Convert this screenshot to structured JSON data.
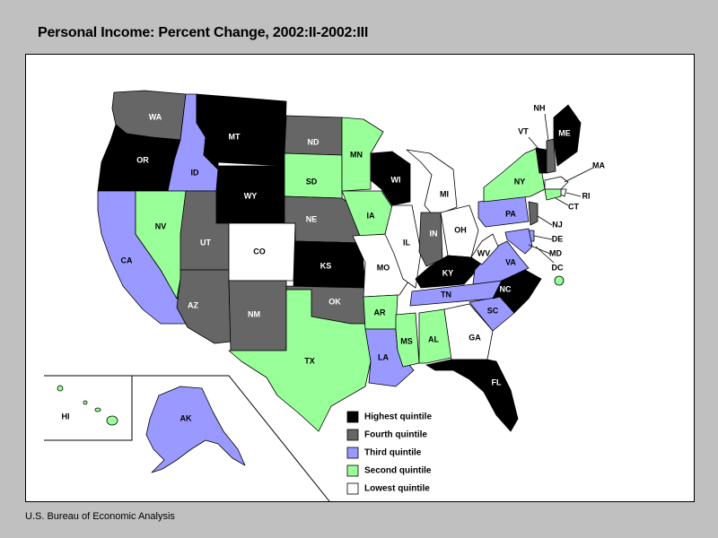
{
  "title": "Personal Income: Percent Change, 2002:II-2002:III",
  "source": "U.S. Bureau of Economic Analysis",
  "colors": {
    "highest": "#000000",
    "fourth": "#666666",
    "third": "#9999ff",
    "second": "#99ff99",
    "lowest": "#ffffff"
  },
  "legend": [
    {
      "key": "highest",
      "label": "Highest quintile"
    },
    {
      "key": "fourth",
      "label": "Fourth quintile"
    },
    {
      "key": "third",
      "label": "Third quintile"
    },
    {
      "key": "second",
      "label": "Second quintile"
    },
    {
      "key": "lowest",
      "label": "Lowest quintile"
    }
  ],
  "states": [
    {
      "abbr": "WA",
      "quintile": "fourth"
    },
    {
      "abbr": "OR",
      "quintile": "highest"
    },
    {
      "abbr": "CA",
      "quintile": "third"
    },
    {
      "abbr": "ID",
      "quintile": "third"
    },
    {
      "abbr": "NV",
      "quintile": "second"
    },
    {
      "abbr": "MT",
      "quintile": "highest"
    },
    {
      "abbr": "WY",
      "quintile": "highest"
    },
    {
      "abbr": "UT",
      "quintile": "fourth"
    },
    {
      "abbr": "AZ",
      "quintile": "fourth"
    },
    {
      "abbr": "CO",
      "quintile": "lowest"
    },
    {
      "abbr": "NM",
      "quintile": "fourth"
    },
    {
      "abbr": "ND",
      "quintile": "fourth"
    },
    {
      "abbr": "SD",
      "quintile": "second"
    },
    {
      "abbr": "NE",
      "quintile": "fourth"
    },
    {
      "abbr": "KS",
      "quintile": "highest"
    },
    {
      "abbr": "OK",
      "quintile": "fourth"
    },
    {
      "abbr": "TX",
      "quintile": "second"
    },
    {
      "abbr": "MN",
      "quintile": "second"
    },
    {
      "abbr": "IA",
      "quintile": "second"
    },
    {
      "abbr": "MO",
      "quintile": "lowest"
    },
    {
      "abbr": "AR",
      "quintile": "second"
    },
    {
      "abbr": "LA",
      "quintile": "third"
    },
    {
      "abbr": "WI",
      "quintile": "highest"
    },
    {
      "abbr": "IL",
      "quintile": "lowest"
    },
    {
      "abbr": "MI",
      "quintile": "lowest"
    },
    {
      "abbr": "IN",
      "quintile": "fourth"
    },
    {
      "abbr": "OH",
      "quintile": "lowest"
    },
    {
      "abbr": "KY",
      "quintile": "highest"
    },
    {
      "abbr": "TN",
      "quintile": "third"
    },
    {
      "abbr": "MS",
      "quintile": "second"
    },
    {
      "abbr": "AL",
      "quintile": "second"
    },
    {
      "abbr": "GA",
      "quintile": "lowest"
    },
    {
      "abbr": "FL",
      "quintile": "highest"
    },
    {
      "abbr": "SC",
      "quintile": "third"
    },
    {
      "abbr": "NC",
      "quintile": "highest"
    },
    {
      "abbr": "VA",
      "quintile": "third"
    },
    {
      "abbr": "WV",
      "quintile": "lowest"
    },
    {
      "abbr": "PA",
      "quintile": "third"
    },
    {
      "abbr": "NY",
      "quintile": "second"
    },
    {
      "abbr": "NJ",
      "quintile": "fourth"
    },
    {
      "abbr": "DE",
      "quintile": "third"
    },
    {
      "abbr": "MD",
      "quintile": "third"
    },
    {
      "abbr": "DC",
      "quintile": "second"
    },
    {
      "abbr": "VT",
      "quintile": "highest"
    },
    {
      "abbr": "NH",
      "quintile": "fourth"
    },
    {
      "abbr": "ME",
      "quintile": "highest"
    },
    {
      "abbr": "MA",
      "quintile": "lowest"
    },
    {
      "abbr": "RI",
      "quintile": "lowest"
    },
    {
      "abbr": "CT",
      "quintile": "second"
    },
    {
      "abbr": "AK",
      "quintile": "third"
    },
    {
      "abbr": "HI",
      "quintile": "second"
    }
  ]
}
